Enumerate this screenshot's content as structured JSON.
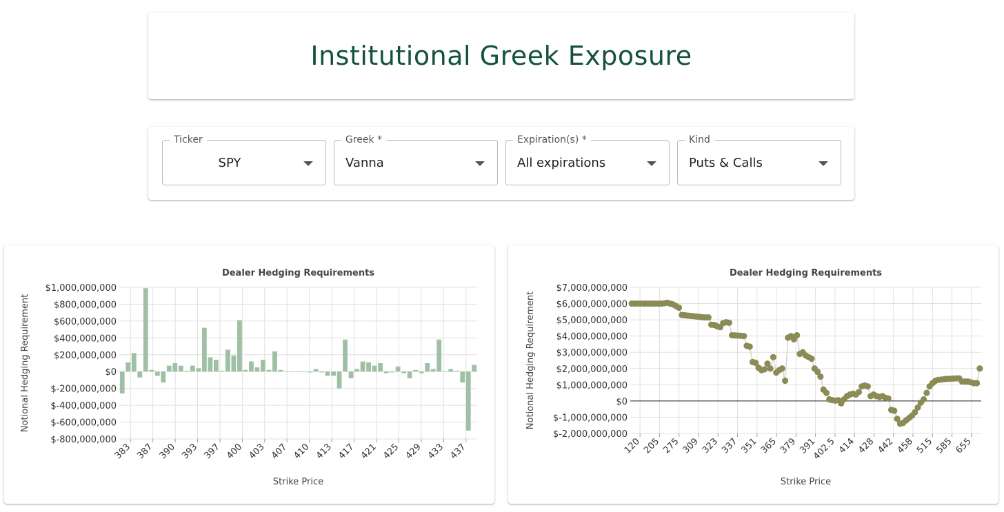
{
  "header": {
    "title": "Institutional Greek Exposure"
  },
  "controls": {
    "ticker": {
      "label": "Ticker",
      "value": "SPY"
    },
    "greek": {
      "label": "Greek *",
      "value": "Vanna"
    },
    "expirations": {
      "label": "Expiration(s) *",
      "value": "All expirations"
    },
    "kind": {
      "label": "Kind",
      "value": "Puts & Calls"
    }
  },
  "colors": {
    "title": "#14533a",
    "bar": "#9fc0a5",
    "scatter": "#8b8b55",
    "grid": "#e0e0e0"
  },
  "chart_data": [
    {
      "type": "bar",
      "title": "Dealer Hedging Requirements",
      "xlabel": "Strike Price",
      "ylabel": "Notional Hedging Requirement",
      "ylim": [
        -800000000,
        1000000000
      ],
      "yticks": [
        1000000000,
        800000000,
        600000000,
        400000000,
        200000000,
        0,
        -200000000,
        -400000000,
        -600000000,
        -800000000
      ],
      "ytick_labels": [
        "$1,000,000,000",
        "$800,000,000",
        "$600,000,000",
        "$400,000,000",
        "$200,000,000",
        "$0",
        "$-200,000,000",
        "$-400,000,000",
        "$-600,000,000",
        "$-800,000,000"
      ],
      "xtick_labels": [
        "383",
        "387",
        "390",
        "393",
        "397",
        "400",
        "403",
        "407",
        "410",
        "413",
        "417",
        "421",
        "425",
        "429",
        "433",
        "437"
      ],
      "grid": true,
      "values": [
        -260000000,
        110000000,
        220000000,
        -70000000,
        990000000,
        20000000,
        -50000000,
        -130000000,
        70000000,
        100000000,
        70000000,
        10000000,
        70000000,
        40000000,
        520000000,
        170000000,
        140000000,
        10000000,
        260000000,
        190000000,
        610000000,
        20000000,
        120000000,
        50000000,
        140000000,
        20000000,
        240000000,
        20000000,
        5000000,
        5000000,
        5000000,
        0,
        -10000000,
        30000000,
        -10000000,
        -50000000,
        -50000000,
        -200000000,
        380000000,
        -80000000,
        30000000,
        120000000,
        110000000,
        70000000,
        100000000,
        -20000000,
        -10000000,
        60000000,
        -20000000,
        -80000000,
        20000000,
        -20000000,
        100000000,
        30000000,
        380000000,
        5000000,
        30000000,
        10000000,
        -130000000,
        -700000000,
        80000000
      ]
    },
    {
      "type": "scatter",
      "title": "Dealer Hedging Requirements",
      "xlabel": "Strike Price",
      "ylabel": "Notional Hedging Requirement",
      "ylim": [
        -2000000000,
        7000000000
      ],
      "yticks": [
        7000000000,
        6000000000,
        5000000000,
        4000000000,
        3000000000,
        2000000000,
        1000000000,
        0,
        -1000000000,
        -2000000000
      ],
      "ytick_labels": [
        "$7,000,000,000",
        "$6,000,000,000",
        "$5,000,000,000",
        "$4,000,000,000",
        "$3,000,000,000",
        "$2,000,000,000",
        "$1,000,000,000",
        "$0",
        "$-1,000,000,000",
        "$-2,000,000,000"
      ],
      "xtick_labels": [
        "120",
        "205",
        "275",
        "309",
        "323",
        "337",
        "351",
        "365",
        "379",
        "391",
        "402.5",
        "414",
        "428",
        "442",
        "458",
        "515",
        "585",
        "655"
      ],
      "grid": true,
      "values": [
        6000000000,
        6000000000,
        6000000000,
        6000000000,
        6000000000,
        6000000000,
        6000000000,
        6000000000,
        6000000000,
        6000000000,
        6000000000,
        6020000000,
        6050000000,
        6000000000,
        5950000000,
        5850000000,
        5750000000,
        5300000000,
        5280000000,
        5260000000,
        5240000000,
        5220000000,
        5200000000,
        5180000000,
        5160000000,
        5150000000,
        5150000000,
        4700000000,
        4680000000,
        4600000000,
        4550000000,
        4800000000,
        4850000000,
        4820000000,
        4050000000,
        4040000000,
        4030000000,
        4020000000,
        4000000000,
        3400000000,
        3350000000,
        2400000000,
        2350000000,
        2050000000,
        1900000000,
        1950000000,
        2300000000,
        2000000000,
        2700000000,
        1750000000,
        1900000000,
        2000000000,
        1250000000,
        3900000000,
        4000000000,
        3800000000,
        4050000000,
        2900000000,
        3000000000,
        2800000000,
        2700000000,
        2600000000,
        2000000000,
        1800000000,
        1500000000,
        700000000,
        500000000,
        100000000,
        50000000,
        20000000,
        50000000,
        -150000000,
        100000000,
        300000000,
        400000000,
        450000000,
        400000000,
        550000000,
        900000000,
        950000000,
        900000000,
        300000000,
        400000000,
        300000000,
        250000000,
        300000000,
        200000000,
        150000000,
        -550000000,
        -600000000,
        -1100000000,
        -1400000000,
        -1350000000,
        -1200000000,
        -1050000000,
        -900000000,
        -700000000,
        -400000000,
        -100000000,
        100000000,
        500000000,
        900000000,
        1100000000,
        1250000000,
        1300000000,
        1320000000,
        1350000000,
        1360000000,
        1370000000,
        1380000000,
        1390000000,
        1390000000,
        1200000000,
        1200000000,
        1200000000,
        1150000000,
        1100000000,
        1100000000,
        2000000000
      ]
    }
  ]
}
